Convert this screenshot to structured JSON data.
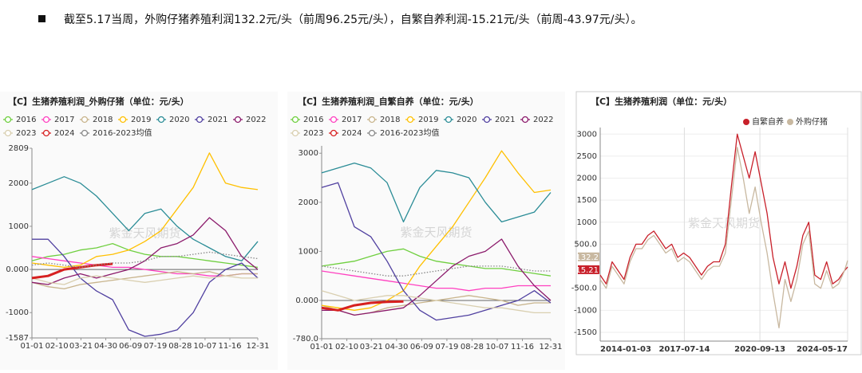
{
  "header": {
    "text": "截至5.17当周，外购仔猪养殖利润132.2元/头（前周96.25元/头），自繁自养利润-15.21元/头（前周-43.97元/头）。"
  },
  "chart_data": [
    {
      "type": "line",
      "title": "【C】生猪养殖利润_外购仔猪（单位：元/头）",
      "watermark": "紫金天风期货",
      "x": [
        0,
        26,
        52,
        78,
        104,
        130,
        156,
        182,
        208,
        234,
        260,
        286,
        312,
        338,
        364
      ],
      "xlim": [
        0,
        364
      ],
      "xticks": [
        {
          "value": 0,
          "label": "01-01"
        },
        {
          "value": 40,
          "label": "02-10"
        },
        {
          "value": 79,
          "label": "03-21"
        },
        {
          "value": 119,
          "label": "04-30"
        },
        {
          "value": 159,
          "label": "06-09"
        },
        {
          "value": 199,
          "label": "07-19"
        },
        {
          "value": 239,
          "label": "08-28"
        },
        {
          "value": 279,
          "label": "10-07"
        },
        {
          "value": 319,
          "label": "11-16"
        },
        {
          "value": 364,
          "label": "12-31"
        }
      ],
      "ylim": [
        -1587,
        2809
      ],
      "yticks": [
        -1587,
        -1000,
        {
          "value": 0,
          "label": "0.000"
        },
        1000,
        2000,
        2809
      ],
      "series": [
        {
          "name": "2016",
          "color": "#6fcf3f",
          "values": [
            200,
            300,
            350,
            450,
            500,
            600,
            450,
            350,
            300,
            300,
            250,
            200,
            150,
            100,
            50
          ]
        },
        {
          "name": "2017",
          "color": "#ff40c0",
          "values": [
            300,
            250,
            200,
            150,
            100,
            50,
            50,
            0,
            -50,
            -100,
            -100,
            -150,
            -150,
            -100,
            -100
          ]
        },
        {
          "name": "2018",
          "color": "#c8b48c",
          "values": [
            -300,
            -400,
            -450,
            -350,
            -300,
            -250,
            -200,
            -150,
            -100,
            -50,
            -100,
            -50,
            -150,
            -100,
            -100
          ]
        },
        {
          "name": "2019",
          "color": "#ffc000",
          "values": [
            150,
            100,
            50,
            100,
            300,
            350,
            450,
            650,
            900,
            1400,
            1900,
            2700,
            2000,
            1900,
            1850
          ]
        },
        {
          "name": "2020",
          "color": "#2a8c96",
          "values": [
            1850,
            2000,
            2150,
            2000,
            1700,
            1300,
            900,
            1300,
            1400,
            1000,
            700,
            500,
            300,
            200,
            650
          ]
        },
        {
          "name": "2021",
          "color": "#5040a0",
          "values": [
            700,
            700,
            300,
            -200,
            -500,
            -700,
            -1400,
            -1550,
            -1500,
            -1400,
            -1000,
            -300,
            0,
            150,
            -200
          ]
        },
        {
          "name": "2022",
          "color": "#8b1a6b",
          "values": [
            -300,
            -350,
            -200,
            -100,
            -200,
            -100,
            0,
            200,
            500,
            600,
            800,
            1200,
            900,
            300,
            0
          ]
        },
        {
          "name": "2023",
          "color": "#d9cfb0",
          "values": [
            -200,
            -300,
            -350,
            -200,
            -150,
            -200,
            -250,
            -300,
            -250,
            -200,
            -150,
            -200,
            -150,
            -200,
            -200
          ]
        },
        {
          "name": "2024",
          "color": "#d62020",
          "highlight": true,
          "values": [
            -200,
            -150,
            0,
            50,
            100,
            130,
            null,
            null,
            null,
            null,
            null,
            null,
            null,
            null,
            null
          ]
        },
        {
          "name": "2016-2023均值",
          "color": "#888888",
          "style": "dotted",
          "values": [
            100,
            150,
            100,
            50,
            100,
            150,
            150,
            200,
            300,
            300,
            350,
            400,
            350,
            300,
            250
          ]
        }
      ]
    },
    {
      "type": "line",
      "title": "【C】生猪养殖利润_自繁自养（单位：元/头）",
      "watermark": "紫金天风期货",
      "x": [
        0,
        26,
        52,
        78,
        104,
        130,
        156,
        182,
        208,
        234,
        260,
        286,
        312,
        338,
        364
      ],
      "xlim": [
        0,
        364
      ],
      "xticks": [
        {
          "value": 0,
          "label": "01-01"
        },
        {
          "value": 40,
          "label": "02-10"
        },
        {
          "value": 79,
          "label": "03-21"
        },
        {
          "value": 119,
          "label": "04-30"
        },
        {
          "value": 159,
          "label": "06-09"
        },
        {
          "value": 199,
          "label": "07-19"
        },
        {
          "value": 239,
          "label": "08-28"
        },
        {
          "value": 279,
          "label": "10-07"
        },
        {
          "value": 319,
          "label": "11-16"
        },
        {
          "value": 364,
          "label": "12-31"
        }
      ],
      "ylim": [
        -780,
        3150
      ],
      "yticks": [
        {
          "value": -780,
          "label": "-780.0"
        },
        {
          "value": 0,
          "label": "0.000"
        },
        1000,
        2000,
        3000
      ],
      "series": [
        {
          "name": "2016",
          "color": "#6fcf3f",
          "values": [
            700,
            750,
            800,
            900,
            1000,
            1050,
            900,
            800,
            750,
            700,
            650,
            650,
            600,
            550,
            500
          ]
        },
        {
          "name": "2017",
          "color": "#ff40c0",
          "values": [
            600,
            550,
            500,
            450,
            400,
            350,
            300,
            250,
            250,
            200,
            250,
            250,
            300,
            300,
            300
          ]
        },
        {
          "name": "2018",
          "color": "#c8b48c",
          "values": [
            -100,
            -200,
            -300,
            -250,
            -150,
            -100,
            -50,
            0,
            50,
            100,
            50,
            0,
            -100,
            -50,
            -50
          ]
        },
        {
          "name": "2019",
          "color": "#ffc000",
          "values": [
            -100,
            -150,
            -200,
            -150,
            0,
            200,
            700,
            1100,
            1500,
            2000,
            2500,
            3050,
            2600,
            2200,
            2250
          ]
        },
        {
          "name": "2020",
          "color": "#2a8c96",
          "values": [
            2600,
            2700,
            2800,
            2700,
            2400,
            1600,
            2300,
            2650,
            2600,
            2500,
            2000,
            1600,
            1700,
            1800,
            2200
          ]
        },
        {
          "name": "2021",
          "color": "#5040a0",
          "values": [
            2300,
            2400,
            1500,
            1300,
            800,
            200,
            -200,
            -400,
            -350,
            -300,
            -200,
            -100,
            0,
            200,
            -50
          ]
        },
        {
          "name": "2022",
          "color": "#8b1a6b",
          "values": [
            -200,
            -200,
            -300,
            -250,
            -200,
            -150,
            100,
            400,
            700,
            900,
            1000,
            1250,
            700,
            300,
            0
          ]
        },
        {
          "name": "2023",
          "color": "#d9cfb0",
          "values": [
            200,
            100,
            0,
            50,
            100,
            100,
            50,
            0,
            -50,
            -100,
            -150,
            -150,
            -200,
            -250,
            -250
          ]
        },
        {
          "name": "2024",
          "color": "#d62020",
          "highlight": true,
          "values": [
            -150,
            -200,
            -100,
            -50,
            -30,
            -20,
            null,
            null,
            null,
            null,
            null,
            null,
            null,
            null,
            null
          ]
        },
        {
          "name": "2016-2023均值",
          "color": "#888888",
          "style": "dotted",
          "values": [
            700,
            650,
            600,
            550,
            500,
            500,
            550,
            600,
            650,
            700,
            700,
            700,
            650,
            600,
            600
          ]
        }
      ]
    },
    {
      "type": "line",
      "title": "【C】生猪养殖利润（单位：元/头）",
      "watermark": "紫金天风期货",
      "end_labels": true,
      "grid": true,
      "legend": "top-right",
      "x": [
        2014,
        2014.25,
        2014.5,
        2014.75,
        2015,
        2015.25,
        2015.5,
        2015.75,
        2016,
        2016.25,
        2016.5,
        2016.75,
        2017,
        2017.25,
        2017.5,
        2017.75,
        2018,
        2018.25,
        2018.5,
        2018.75,
        2019,
        2019.25,
        2019.5,
        2019.75,
        2020,
        2020.25,
        2020.5,
        2020.75,
        2021,
        2021.25,
        2021.5,
        2021.75,
        2022,
        2022.25,
        2022.5,
        2022.75,
        2023,
        2023.25,
        2023.5,
        2023.75,
        2024,
        2024.25,
        2024.38
      ],
      "xlim": [
        2014,
        2024.38
      ],
      "xticks": [
        {
          "value": 2014,
          "label": "2014-01-03"
        },
        {
          "value": 2017.53,
          "label": "2017-07-14"
        },
        {
          "value": 2020.7,
          "label": "2020-09-13"
        },
        {
          "value": 2024.38,
          "label": "2024-05-17"
        }
      ],
      "ylim": [
        -1700,
        3150
      ],
      "yticks": [
        -1500,
        -1000,
        {
          "value": -500,
          "label": "-500.0"
        },
        {
          "value": 500,
          "label": "500.0"
        },
        1000,
        1500,
        2000,
        2500,
        3000
      ],
      "series": [
        {
          "name": "自繁自养",
          "color": "#c8202a",
          "values": [
            -200,
            -400,
            100,
            -100,
            -300,
            200,
            500,
            500,
            700,
            800,
            600,
            400,
            500,
            200,
            300,
            200,
            0,
            -200,
            0,
            100,
            100,
            500,
            1800,
            3000,
            2500,
            2000,
            2600,
            1900,
            1200,
            200,
            -400,
            100,
            -500,
            0,
            700,
            1000,
            -200,
            -300,
            100,
            -400,
            -300,
            -100,
            -15.21
          ]
        },
        {
          "name": "外购仔猪",
          "color": "#c8b8a0",
          "values": [
            -300,
            -500,
            0,
            -200,
            -400,
            100,
            400,
            400,
            600,
            700,
            500,
            300,
            400,
            100,
            200,
            100,
            -100,
            -300,
            -100,
            0,
            0,
            300,
            1500,
            2700,
            2000,
            1200,
            1800,
            1000,
            300,
            -600,
            -1400,
            -300,
            -800,
            -300,
            500,
            800,
            -400,
            -500,
            -100,
            -500,
            -400,
            -100,
            132.2
          ]
        }
      ]
    }
  ]
}
